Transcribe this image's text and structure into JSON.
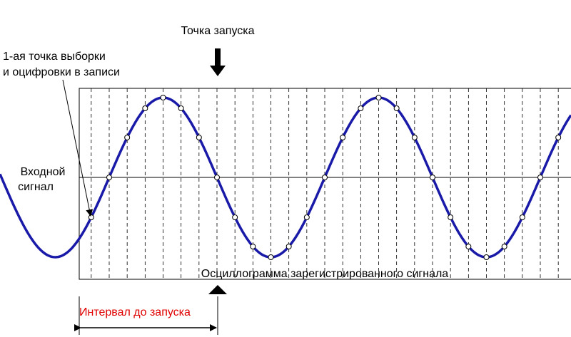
{
  "trigger_label": "Точка запуска",
  "first_sample_label": [
    "1-ая точка выборки",
    "и оцифровки в записи"
  ],
  "input_label": [
    "Входной",
    "сигнал"
  ],
  "record_caption": "Осциллограмма зарегистрированного сигнала",
  "pretrigger_label": "Интервал до запуска"
}
